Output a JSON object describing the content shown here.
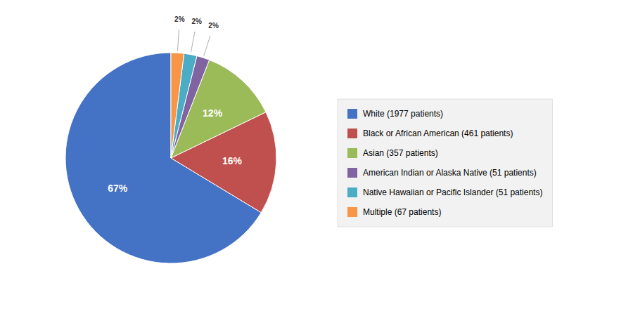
{
  "chart_data": {
    "type": "pie",
    "categories": [
      "White (1977 patients)",
      "Black or African American (461 patients)",
      "Asian (357 patients)",
      "American Indian or Alaska Native (51 patients)",
      "Native Hawaiian or Pacific Islander (51 patients)",
      "Multiple (67 patients)"
    ],
    "values": [
      67,
      16,
      12,
      2,
      2,
      2
    ],
    "value_labels": [
      "67%",
      "16%",
      "12%",
      "2%",
      "2%",
      "2%"
    ],
    "colors": [
      "#4472C4",
      "#C0504D",
      "#9BBB59",
      "#8064A2",
      "#4BACC6",
      "#F79646"
    ],
    "data_labels": true,
    "legend": "right"
  }
}
